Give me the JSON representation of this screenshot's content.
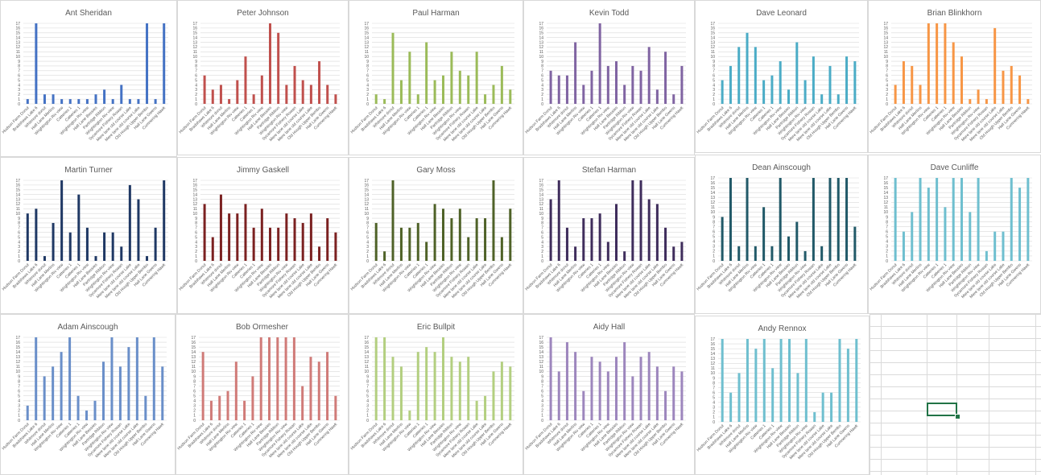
{
  "chart_data": [
    {
      "type": "bar",
      "title": "Ant Sheridan",
      "color": "#4472c4",
      "ylim": [
        0,
        17
      ],
      "values": [
        1,
        17,
        2,
        2,
        1,
        1,
        1,
        1,
        2,
        3,
        1,
        4,
        1,
        1,
        17,
        1,
        17
      ]
    },
    {
      "type": "bar",
      "title": "Peter Johnson",
      "color": "#c0504d",
      "ylim": [
        0,
        17
      ],
      "values": [
        6,
        3,
        4,
        1,
        5,
        10,
        2,
        6,
        17,
        15,
        4,
        8,
        5,
        4,
        9,
        4,
        2
      ]
    },
    {
      "type": "bar",
      "title": "Paul Harman",
      "color": "#9bbb59",
      "ylim": [
        0,
        17
      ],
      "values": [
        2,
        1,
        15,
        5,
        11,
        2,
        13,
        5,
        6,
        11,
        7,
        6,
        11,
        2,
        4,
        8,
        3
      ]
    },
    {
      "type": "bar",
      "title": "Kevin Todd",
      "color": "#8064a2",
      "ylim": [
        0,
        17
      ],
      "values": [
        7,
        6,
        6,
        13,
        4,
        7,
        17,
        8,
        9,
        4,
        8,
        7,
        12,
        3,
        11,
        2,
        8
      ]
    },
    {
      "type": "bar",
      "title": "Dave Leonard",
      "color": "#4bacc6",
      "ylim": [
        0,
        17
      ],
      "values": [
        5,
        8,
        12,
        15,
        12,
        5,
        6,
        9,
        3,
        13,
        5,
        10,
        2,
        8,
        2,
        10,
        9
      ]
    },
    {
      "type": "bar",
      "title": "Brian Blinkhorn",
      "color": "#f79646",
      "ylim": [
        0,
        17
      ],
      "values": [
        4,
        9,
        8,
        4,
        17,
        17,
        17,
        13,
        10,
        1,
        3,
        1,
        16,
        7,
        8,
        6,
        1
      ]
    },
    {
      "type": "bar",
      "title": "Martin Turner",
      "color": "#1f3864",
      "ylim": [
        0,
        17
      ],
      "values": [
        10,
        11,
        1,
        8,
        17,
        6,
        14,
        7,
        1,
        6,
        6,
        3,
        16,
        13,
        1,
        7,
        17
      ]
    },
    {
      "type": "bar",
      "title": "Jimmy Gaskell",
      "color": "#7b2121",
      "ylim": [
        0,
        17
      ],
      "values": [
        12,
        5,
        14,
        10,
        10,
        12,
        7,
        11,
        7,
        7,
        10,
        9,
        8,
        10,
        3,
        9,
        6
      ]
    },
    {
      "type": "bar",
      "title": "Gary Moss",
      "color": "#4f6228",
      "ylim": [
        0,
        17
      ],
      "values": [
        8,
        2,
        17,
        7,
        7,
        8,
        4,
        12,
        11,
        9,
        11,
        5,
        9,
        9,
        17,
        5,
        11
      ]
    },
    {
      "type": "bar",
      "title": "Stefan Harman",
      "color": "#3f2d5c",
      "ylim": [
        0,
        17
      ],
      "values": [
        13,
        17,
        7,
        3,
        9,
        9,
        10,
        4,
        12,
        2,
        17,
        17,
        13,
        12,
        7,
        3,
        4
      ]
    },
    {
      "type": "bar",
      "title": "Dean Ainscough",
      "color": "#215968",
      "ylim": [
        0,
        17
      ],
      "values": [
        9,
        17,
        3,
        17,
        3,
        11,
        3,
        17,
        5,
        8,
        2,
        17,
        3,
        17,
        17,
        17,
        7
      ]
    },
    {
      "type": "bar",
      "title": "Dave Cunliffe",
      "color": "#6fbfcf",
      "ylim": [
        0,
        17
      ],
      "values": [
        17,
        6,
        10,
        17,
        15,
        17,
        11,
        17,
        17,
        10,
        17,
        2,
        6,
        6,
        17,
        15,
        17
      ]
    },
    {
      "type": "bar",
      "title": "Adam Ainscough",
      "color": "#6a8fc9",
      "ylim": [
        0,
        17
      ],
      "values": [
        3,
        17,
        9,
        11,
        14,
        17,
        5,
        2,
        4,
        12,
        17,
        11,
        15,
        17,
        5,
        17,
        11
      ]
    },
    {
      "type": "bar",
      "title": "Bob Ormesher",
      "color": "#d07b78",
      "ylim": [
        0,
        17
      ],
      "values": [
        14,
        4,
        5,
        6,
        12,
        4,
        9,
        17,
        17,
        17,
        17,
        17,
        7,
        13,
        12,
        14,
        5
      ]
    },
    {
      "type": "bar",
      "title": "Eric Bullpit",
      "color": "#b3cf80",
      "ylim": [
        0,
        17
      ],
      "values": [
        17,
        17,
        13,
        11,
        2,
        14,
        15,
        14,
        17,
        13,
        12,
        13,
        4,
        5,
        10,
        12,
        11
      ]
    },
    {
      "type": "bar",
      "title": "Aidy Hall",
      "color": "#9d86bd",
      "ylim": [
        0,
        17
      ],
      "values": [
        17,
        10,
        16,
        14,
        6,
        13,
        12,
        10,
        13,
        16,
        9,
        13,
        14,
        11,
        6,
        11,
        10
      ]
    },
    {
      "type": "bar",
      "title": "Andy Rennox",
      "color": "#6fbfcf",
      "ylim": [
        0,
        17
      ],
      "values": [
        17,
        6,
        10,
        17,
        15,
        17,
        11,
        17,
        17,
        10,
        17,
        2,
        6,
        6,
        17,
        15,
        17
      ]
    }
  ],
  "categories": [
    "Hudson Farm Donut",
    "Bradshaws Lake 6",
    "Whitmore donut",
    "Hall Lane Merlins",
    "Wrightington Riv view",
    "Catteries 1",
    "Catteries 1",
    "Wrightington Riv view",
    "Hall Lane Bessies",
    "Partridge Ribbon",
    "Wrightington Riv view",
    "Sycamore Fishery Rowan",
    "Mere lane old course Lake",
    "Mere lane old course Lake",
    "Old Hough Upper Bembo",
    "Hall Lane Gwens",
    "Cumnering Hawk"
  ],
  "y_ticks": [
    0,
    1,
    2,
    3,
    4,
    5,
    6,
    7,
    8,
    9,
    10,
    11,
    12,
    13,
    14,
    15,
    16,
    17
  ],
  "sheet": {
    "selection_color": "#217346"
  }
}
